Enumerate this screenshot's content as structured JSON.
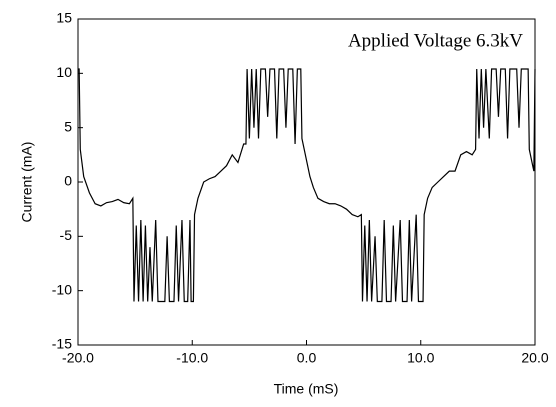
{
  "chart_data": {
    "type": "line",
    "annotation": "Applied Voltage 6.3kV",
    "xlabel": "Time (mS)",
    "ylabel": "Current (mA)",
    "x": [
      -20,
      -19.9,
      -19.8,
      -19.5,
      -19,
      -18.5,
      -18,
      -17.5,
      -17,
      -16.5,
      -16,
      -15.5,
      -15.2,
      -15.1,
      -14.9,
      -14.7,
      -14.5,
      -14.3,
      -14.1,
      -13.9,
      -13.7,
      -13.5,
      -13.2,
      -13,
      -12.4,
      -12.2,
      -12,
      -11.6,
      -11.4,
      -11.2,
      -10.9,
      -10.7,
      -10.4,
      -10.2,
      -10.1,
      -9.9,
      -9.8,
      -9.5,
      -9,
      -8.5,
      -8,
      -7.5,
      -7,
      -6.5,
      -6,
      -5.5,
      -5.3,
      -5.2,
      -5,
      -4.8,
      -4.6,
      -4.4,
      -4.2,
      -4,
      -3.6,
      -3.4,
      -3.2,
      -2.8,
      -2.6,
      -2.4,
      -2,
      -1.8,
      -1.6,
      -1.2,
      -1,
      -0.8,
      -0.5,
      -0.4,
      -0.2,
      0,
      0.3,
      0.6,
      1,
      1.5,
      2,
      2.5,
      3,
      3.5,
      4,
      4.5,
      4.8,
      4.9,
      5.1,
      5.3,
      5.5,
      5.7,
      6,
      6.2,
      6.6,
      6.8,
      7,
      7.4,
      7.6,
      7.8,
      8.2,
      8.4,
      8.8,
      9,
      9.2,
      9.6,
      9.8,
      10.2,
      10.3,
      10.6,
      11,
      11.5,
      12,
      12.5,
      13,
      13.5,
      14,
      14.5,
      14.8,
      14.9,
      15.1,
      15.3,
      15.5,
      15.7,
      16,
      16.2,
      16.6,
      16.8,
      17,
      17.4,
      17.6,
      17.8,
      18.4,
      18.6,
      18.8,
      19.4,
      19.5,
      19.8,
      19.9,
      20
    ],
    "series": [
      {
        "color": "#000000",
        "values": [
          10.4,
          10.4,
          3,
          0.5,
          -1,
          -2,
          -2.2,
          -1.9,
          -1.8,
          -1.6,
          -1.9,
          -2,
          -1.5,
          -11,
          -4,
          -11,
          -3.5,
          -11,
          -4,
          -11,
          -6,
          -11,
          -3.5,
          -11,
          -11,
          -5,
          -11,
          -11,
          -4,
          -11,
          -3.5,
          -11,
          -11,
          -3.5,
          -11,
          -11,
          -3,
          -1.5,
          0,
          0.3,
          0.5,
          1,
          1.5,
          2.5,
          1.8,
          3.5,
          3.5,
          10.4,
          4,
          10.4,
          5,
          10.4,
          4,
          10.4,
          10.4,
          6,
          10.4,
          10.4,
          4,
          10.4,
          10.4,
          5,
          10.4,
          10.4,
          3.5,
          10.4,
          10.4,
          4,
          3,
          2,
          0.5,
          -0.5,
          -1.5,
          -1.8,
          -2,
          -2,
          -2.2,
          -2.5,
          -3,
          -3.2,
          -3,
          -11,
          -4,
          -11,
          -3.5,
          -11,
          -5,
          -11,
          -11,
          -3.5,
          -11,
          -11,
          -4,
          -11,
          -3.5,
          -11,
          -11,
          -3.5,
          -11,
          -3,
          -11,
          -11,
          -3,
          -1.5,
          -0.5,
          0,
          0.5,
          1,
          1,
          2.5,
          2.8,
          2.5,
          3,
          10.4,
          4,
          10.4,
          5,
          10.4,
          4,
          10.4,
          10.4,
          6,
          10.4,
          10.4,
          4,
          10.4,
          10.4,
          5,
          10.4,
          10.4,
          3,
          1.5,
          1,
          10.4
        ]
      }
    ],
    "xlim": [
      -20,
      20
    ],
    "xticks": [
      {
        "value": -20,
        "label": "-20.0"
      },
      {
        "value": -10,
        "label": "-10.0"
      },
      {
        "value": 0,
        "label": "0.0"
      },
      {
        "value": 10,
        "label": "10.0"
      },
      {
        "value": 20,
        "label": "20.0"
      }
    ],
    "ylim": [
      -15,
      15
    ],
    "yticks": [
      -15,
      -10,
      -5,
      0,
      5,
      10,
      15
    ]
  }
}
